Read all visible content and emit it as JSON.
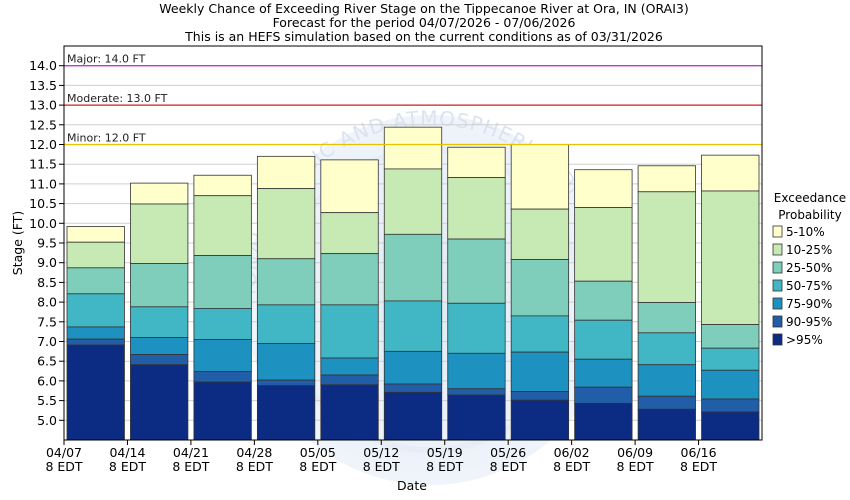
{
  "chart_data": {
    "type": "bar",
    "stacked": true,
    "title_lines": [
      "Weekly Chance of Exceeding River Stage on the Tippecanoe River at Ora, IN (ORAI3)",
      "Forecast for the period 04/07/2026 - 07/06/2026",
      "This is an HEFS simulation based on the current conditions as of 03/31/2026"
    ],
    "xlabel": "Date",
    "ylabel": "Stage (FT)",
    "ylim": [
      4.5,
      14.5
    ],
    "yticks": [
      "5.0",
      "5.5",
      "6.0",
      "6.5",
      "7.0",
      "7.5",
      "8.0",
      "8.5",
      "9.0",
      "9.5",
      "10.0",
      "10.5",
      "11.0",
      "11.5",
      "12.0",
      "12.5",
      "13.0",
      "13.5",
      "14.0"
    ],
    "xticks": [
      {
        "date": "04/07",
        "sub": "8 EDT"
      },
      {
        "date": "04/14",
        "sub": "8 EDT"
      },
      {
        "date": "04/21",
        "sub": "8 EDT"
      },
      {
        "date": "04/28",
        "sub": "8 EDT"
      },
      {
        "date": "05/05",
        "sub": "8 EDT"
      },
      {
        "date": "05/12",
        "sub": "8 EDT"
      },
      {
        "date": "05/19",
        "sub": "8 EDT"
      },
      {
        "date": "05/26",
        "sub": "8 EDT"
      },
      {
        "date": "06/02",
        "sub": "8 EDT"
      },
      {
        "date": "06/09",
        "sub": "8 EDT"
      },
      {
        "date": "06/16",
        "sub": "8 EDT"
      }
    ],
    "thresholds": [
      {
        "label": "Major: 14.0 FT",
        "value": 14.0,
        "color": "#cc33cc"
      },
      {
        "label": "Moderate: 13.0 FT",
        "value": 13.0,
        "color": "#cc2222"
      },
      {
        "label": "Minor: 12.0 FT",
        "value": 12.0,
        "color": "#e6c200"
      }
    ],
    "legend_title": [
      "Exceedance",
      "Probability"
    ],
    "legend_position": "right",
    "series": [
      {
        "name": "5-10%",
        "color": "#ffffcc"
      },
      {
        "name": "10-25%",
        "color": "#c7e9b4"
      },
      {
        "name": "25-50%",
        "color": "#7fcdbb"
      },
      {
        "name": "50-75%",
        "color": "#41b6c4"
      },
      {
        "name": "75-90%",
        "color": "#1d91c0"
      },
      {
        "name": "90-95%",
        "color": "#225ea8"
      },
      {
        "name": ">95%",
        "color": "#0c2c84"
      }
    ],
    "weeks": [
      {
        "levels": [
          9.92,
          9.52,
          8.87,
          8.21,
          7.37,
          7.06,
          6.91
        ]
      },
      {
        "levels": [
          11.02,
          10.49,
          8.98,
          7.88,
          7.1,
          6.67,
          6.41
        ]
      },
      {
        "levels": [
          11.22,
          10.7,
          9.18,
          7.84,
          7.05,
          6.24,
          5.97
        ]
      },
      {
        "levels": [
          11.7,
          10.88,
          9.1,
          7.93,
          6.95,
          6.02,
          5.88
        ]
      },
      {
        "levels": [
          11.61,
          10.27,
          9.23,
          7.93,
          6.58,
          6.15,
          5.9
        ]
      },
      {
        "levels": [
          12.44,
          11.38,
          9.72,
          8.03,
          6.75,
          5.92,
          5.71
        ]
      },
      {
        "levels": [
          11.93,
          11.16,
          9.6,
          7.97,
          6.7,
          5.8,
          5.64
        ]
      },
      {
        "levels": [
          12.0,
          10.36,
          9.08,
          7.65,
          6.73,
          5.73,
          5.51
        ]
      },
      {
        "levels": [
          11.36,
          10.4,
          8.53,
          7.54,
          6.55,
          5.84,
          5.43
        ]
      },
      {
        "levels": [
          11.46,
          10.8,
          7.99,
          7.22,
          6.41,
          5.61,
          5.28
        ]
      },
      {
        "levels": [
          11.73,
          10.82,
          7.43,
          6.83,
          6.27,
          5.54,
          5.21
        ]
      }
    ],
    "watermark": "NATIONAL OCEANIC AND ATMOSPHERIC ADMINISTRATION"
  }
}
